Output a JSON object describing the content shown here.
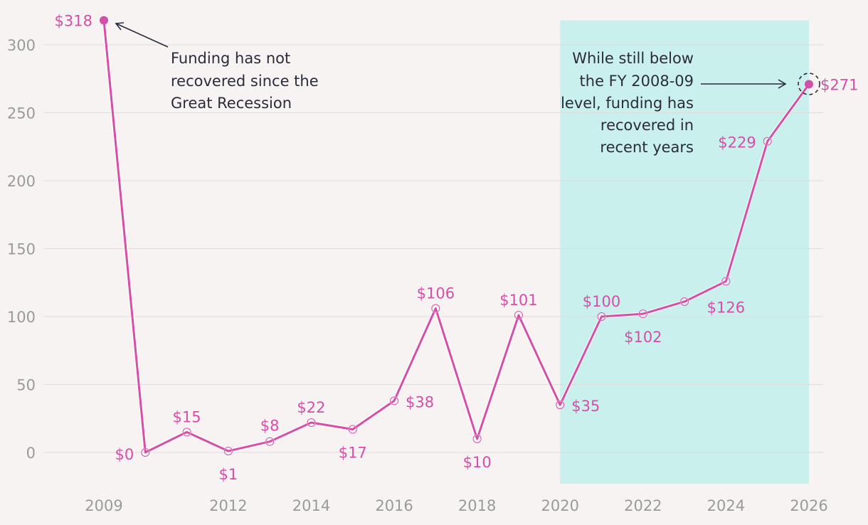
{
  "chart_data": {
    "type": "line",
    "title": "",
    "xlabel": "",
    "ylabel": "",
    "x_ticks": [
      "2009",
      "2012",
      "2014",
      "2016",
      "2018",
      "2020",
      "2022",
      "2024",
      "2026"
    ],
    "y_ticks": [
      "0",
      "50",
      "100",
      "150",
      "200",
      "250",
      "300"
    ],
    "ylim": [
      -23,
      318
    ],
    "xlim": [
      2009,
      2026
    ],
    "grid": true,
    "highlight_range": [
      2020,
      2026
    ],
    "series": [
      {
        "name": "Funding",
        "points": [
          {
            "x": 2009,
            "y": 318,
            "label": "$318"
          },
          {
            "x": 2010,
            "y": 0,
            "label": "$0"
          },
          {
            "x": 2011,
            "y": 15,
            "label": "$15"
          },
          {
            "x": 2012,
            "y": 1,
            "label": "$1"
          },
          {
            "x": 2013,
            "y": 8,
            "label": "$8"
          },
          {
            "x": 2014,
            "y": 22,
            "label": "$22"
          },
          {
            "x": 2015,
            "y": 17,
            "label": "$17"
          },
          {
            "x": 2016,
            "y": 38,
            "label": "$38"
          },
          {
            "x": 2017,
            "y": 106,
            "label": "$106"
          },
          {
            "x": 2018,
            "y": 10,
            "label": "$10"
          },
          {
            "x": 2019,
            "y": 101,
            "label": "$101"
          },
          {
            "x": 2020,
            "y": 35,
            "label": "$35"
          },
          {
            "x": 2021,
            "y": 100,
            "label": "$100"
          },
          {
            "x": 2022,
            "y": 102,
            "label": "$102"
          },
          {
            "x": 2023,
            "y": 111,
            "label": ""
          },
          {
            "x": 2024,
            "y": 126,
            "label": "$126"
          },
          {
            "x": 2025,
            "y": 229,
            "label": "$229"
          },
          {
            "x": 2026,
            "y": 271,
            "label": "$271"
          }
        ]
      }
    ],
    "annotations": [
      {
        "text_lines": [
          "Funding has not",
          "recovered since the",
          "Great Recession"
        ],
        "points_to_x": 2009
      },
      {
        "text_lines": [
          "While still below",
          "the FY 2008-09",
          "level, funding has",
          "recovered in",
          "recent years"
        ],
        "points_to_x": 2026
      }
    ]
  },
  "colors": {
    "line": "#d34fa8",
    "highlight": "#c9f0ec",
    "grid": "#dddddd",
    "axis_text": "#9a9a9a",
    "annotation_text": "#2b2b3a",
    "background": "#f8f3f3"
  }
}
